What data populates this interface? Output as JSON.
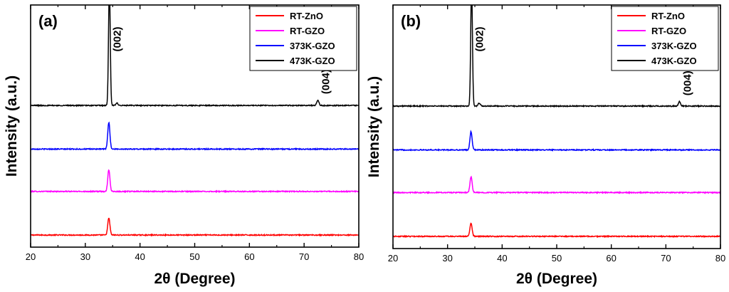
{
  "chart_data": [
    {
      "type": "line",
      "panel_label": "(a)",
      "xlabel": "2θ (Degree)",
      "ylabel": "Intensity (a.u.)",
      "xlim": [
        20,
        80
      ],
      "x_ticks": [
        "20",
        "30",
        "40",
        "50",
        "60",
        "70",
        "80"
      ],
      "legend_position": "top-right",
      "annotations": [
        {
          "text": "(002)",
          "x": 34.4,
          "series": "473K-GZO"
        },
        {
          "text": "(004)",
          "x": 72.5,
          "series": "473K-GZO"
        }
      ],
      "series": [
        {
          "name": "RT-ZnO",
          "color": "#ff0000",
          "baseline": 0.05,
          "peaks": [
            [
              34.3,
              0.07
            ]
          ]
        },
        {
          "name": "RT-GZO",
          "color": "#ff00ff",
          "baseline": 0.23,
          "peaks": [
            [
              34.3,
              0.09
            ]
          ]
        },
        {
          "name": "373K-GZO",
          "color": "#0000ff",
          "baseline": 0.405,
          "peaks": [
            [
              34.3,
              0.11
            ]
          ]
        },
        {
          "name": "473K-GZO",
          "color": "#000000",
          "baseline": 0.585,
          "peaks": [
            [
              34.4,
              0.5
            ],
            [
              35.8,
              0.01
            ],
            [
              72.5,
              0.022
            ]
          ]
        }
      ]
    },
    {
      "type": "line",
      "panel_label": "(b)",
      "xlabel": "2θ (Degree)",
      "ylabel": "Intensity (a.u.)",
      "xlim": [
        20,
        80
      ],
      "x_ticks": [
        "20",
        "30",
        "40",
        "50",
        "60",
        "70",
        "80"
      ],
      "legend_position": "top-right",
      "annotations": [
        {
          "text": "(002)",
          "x": 34.4,
          "series": "473K-GZO"
        },
        {
          "text": "(004)",
          "x": 72.5,
          "series": "473K-GZO"
        }
      ],
      "series": [
        {
          "name": "RT-ZnO",
          "color": "#ff0000",
          "baseline": 0.05,
          "peaks": [
            [
              34.3,
              0.055
            ]
          ]
        },
        {
          "name": "RT-GZO",
          "color": "#ff00ff",
          "baseline": 0.23,
          "peaks": [
            [
              34.3,
              0.065
            ]
          ]
        },
        {
          "name": "373K-GZO",
          "color": "#0000ff",
          "baseline": 0.405,
          "peaks": [
            [
              34.3,
              0.075
            ]
          ]
        },
        {
          "name": "473K-GZO",
          "color": "#000000",
          "baseline": 0.585,
          "peaks": [
            [
              34.4,
              0.5
            ],
            [
              35.8,
              0.012
            ],
            [
              72.5,
              0.018
            ]
          ]
        }
      ]
    }
  ]
}
